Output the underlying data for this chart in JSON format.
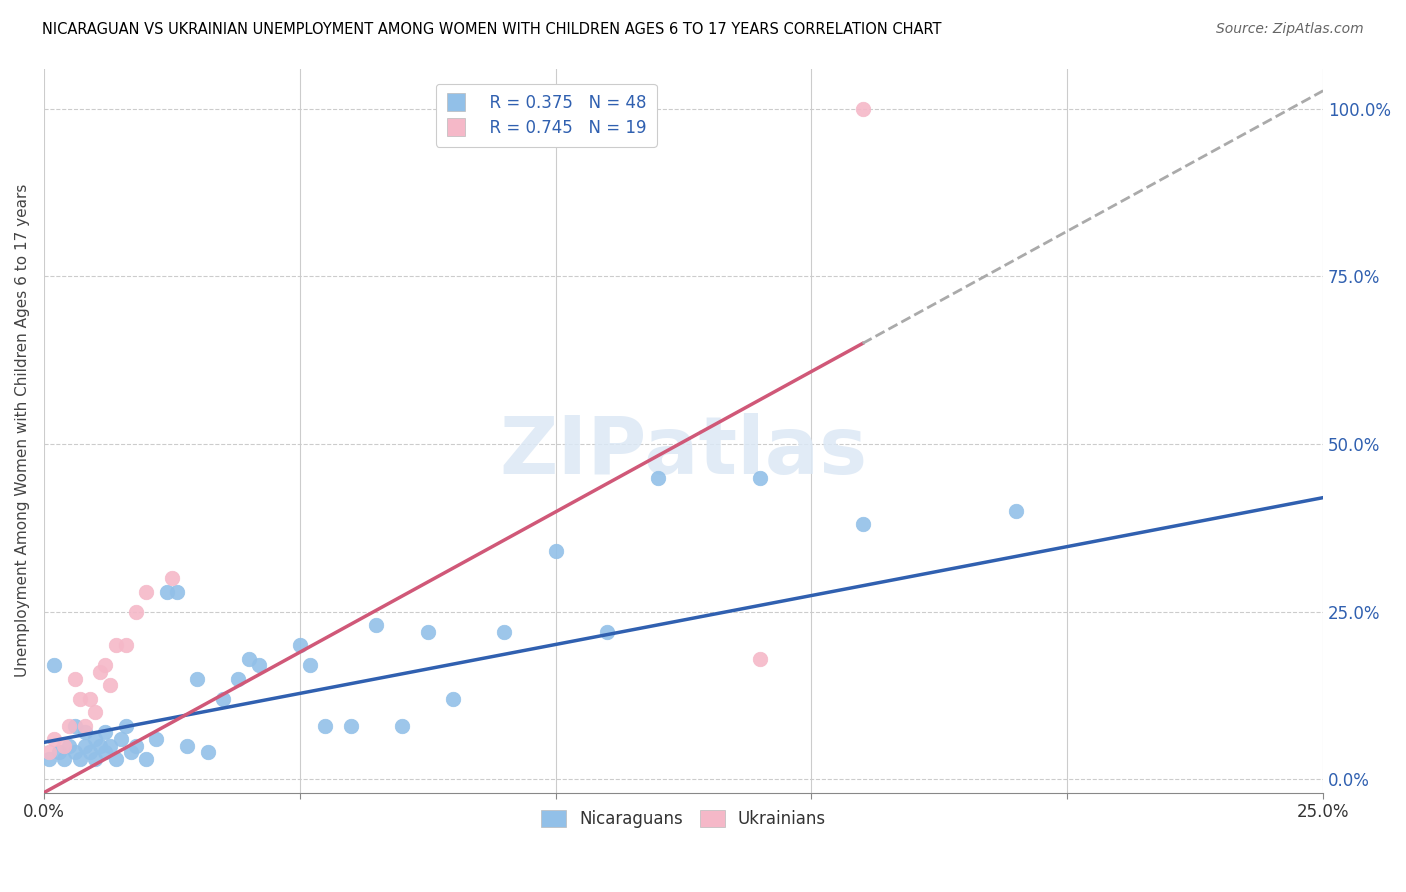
{
  "title": "NICARAGUAN VS UKRAINIAN UNEMPLOYMENT AMONG WOMEN WITH CHILDREN AGES 6 TO 17 YEARS CORRELATION CHART",
  "source": "Source: ZipAtlas.com",
  "ylabel": "Unemployment Among Women with Children Ages 6 to 17 years",
  "right_yticks": [
    0.0,
    0.25,
    0.5,
    0.75,
    1.0
  ],
  "right_yticklabels": [
    "0.0%",
    "25.0%",
    "50.0%",
    "75.0%",
    "100.0%"
  ],
  "legend_blue_r": "R = 0.375",
  "legend_blue_n": "N = 48",
  "legend_pink_r": "R = 0.745",
  "legend_pink_n": "N = 19",
  "blue_color": "#92c0e8",
  "pink_color": "#f5b8c8",
  "blue_line_color": "#3060b0",
  "pink_line_color": "#d05878",
  "dash_color": "#aaaaaa",
  "watermark_color": "#dce8f5",
  "watermark": "ZIPatlas",
  "nicaraguan_x": [
    0.001,
    0.002,
    0.003,
    0.004,
    0.005,
    0.006,
    0.006,
    0.007,
    0.008,
    0.008,
    0.009,
    0.01,
    0.01,
    0.011,
    0.012,
    0.012,
    0.013,
    0.014,
    0.015,
    0.016,
    0.017,
    0.018,
    0.02,
    0.022,
    0.024,
    0.026,
    0.028,
    0.03,
    0.032,
    0.035,
    0.038,
    0.04,
    0.042,
    0.05,
    0.052,
    0.055,
    0.06,
    0.065,
    0.07,
    0.075,
    0.08,
    0.09,
    0.1,
    0.11,
    0.12,
    0.14,
    0.16,
    0.19
  ],
  "nicaraguan_y": [
    0.03,
    0.17,
    0.04,
    0.03,
    0.05,
    0.04,
    0.08,
    0.03,
    0.05,
    0.07,
    0.04,
    0.03,
    0.06,
    0.05,
    0.04,
    0.07,
    0.05,
    0.03,
    0.06,
    0.08,
    0.04,
    0.05,
    0.03,
    0.06,
    0.28,
    0.28,
    0.05,
    0.15,
    0.04,
    0.12,
    0.15,
    0.18,
    0.17,
    0.2,
    0.17,
    0.08,
    0.08,
    0.23,
    0.08,
    0.22,
    0.12,
    0.22,
    0.34,
    0.22,
    0.45,
    0.45,
    0.38,
    0.4
  ],
  "ukrainian_x": [
    0.001,
    0.002,
    0.004,
    0.005,
    0.006,
    0.007,
    0.008,
    0.009,
    0.01,
    0.011,
    0.012,
    0.013,
    0.014,
    0.016,
    0.018,
    0.02,
    0.025,
    0.14,
    0.16
  ],
  "ukrainian_y": [
    0.04,
    0.06,
    0.05,
    0.08,
    0.15,
    0.12,
    0.08,
    0.12,
    0.1,
    0.16,
    0.17,
    0.14,
    0.2,
    0.2,
    0.25,
    0.28,
    0.3,
    0.18,
    1.0
  ],
  "xmin": 0.0,
  "xmax": 0.25,
  "ymin": -0.02,
  "ymax": 1.06,
  "blue_trend_x0": 0.0,
  "blue_trend_y0": 0.055,
  "blue_trend_x1": 0.25,
  "blue_trend_y1": 0.42,
  "pink_trend_x0": 0.0,
  "pink_trend_y0": -0.02,
  "pink_trend_x1": 0.16,
  "pink_trend_y1": 0.65,
  "dash_trend_x0": 0.16,
  "dash_trend_x1": 0.25
}
